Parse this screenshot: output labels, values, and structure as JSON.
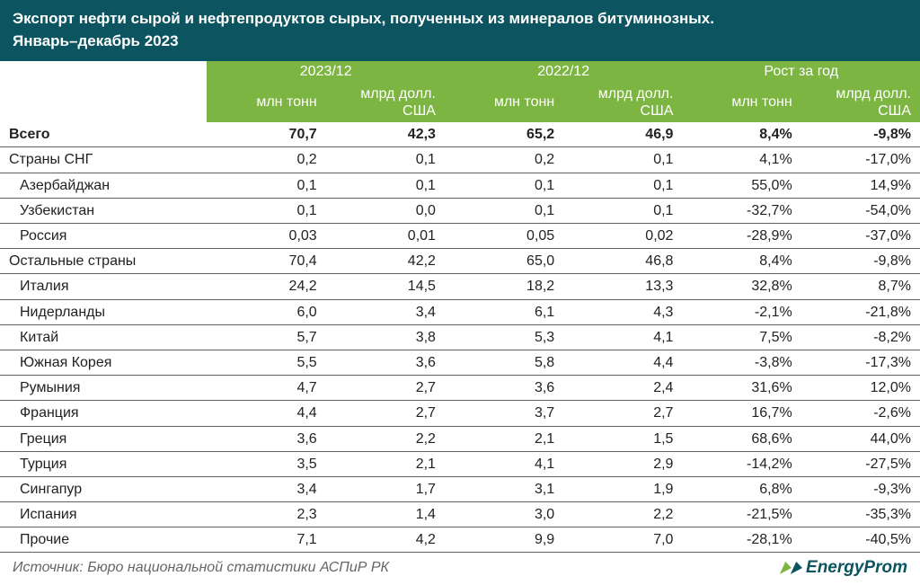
{
  "header": {
    "title_line1": "Экспорт нефти сырой и нефтепродуктов сырых, полученных из минералов битуминозных.",
    "title_line2": "Январь–декабрь 2023"
  },
  "columns": {
    "period1": "2023/12",
    "period2": "2022/12",
    "period3": "Рост за год",
    "unit1": "млн тонн",
    "unit2": "млрд долл. США"
  },
  "rows": [
    {
      "label": "Всего",
      "bold": true,
      "indent": 0,
      "v": [
        "70,7",
        "42,3",
        "65,2",
        "46,9",
        "8,4%",
        "-9,8%"
      ]
    },
    {
      "label": "Страны СНГ",
      "bold": false,
      "indent": 0,
      "v": [
        "0,2",
        "0,1",
        "0,2",
        "0,1",
        "4,1%",
        "-17,0%"
      ]
    },
    {
      "label": "Азербайджан",
      "bold": false,
      "indent": 1,
      "v": [
        "0,1",
        "0,1",
        "0,1",
        "0,1",
        "55,0%",
        "14,9%"
      ]
    },
    {
      "label": "Узбекистан",
      "bold": false,
      "indent": 1,
      "v": [
        "0,1",
        "0,0",
        "0,1",
        "0,1",
        "-32,7%",
        "-54,0%"
      ]
    },
    {
      "label": "Россия",
      "bold": false,
      "indent": 1,
      "v": [
        "0,03",
        "0,01",
        "0,05",
        "0,02",
        "-28,9%",
        "-37,0%"
      ]
    },
    {
      "label": "Остальные страны",
      "bold": false,
      "indent": 0,
      "v": [
        "70,4",
        "42,2",
        "65,0",
        "46,8",
        "8,4%",
        "-9,8%"
      ]
    },
    {
      "label": "Италия",
      "bold": false,
      "indent": 1,
      "v": [
        "24,2",
        "14,5",
        "18,2",
        "13,3",
        "32,8%",
        "8,7%"
      ]
    },
    {
      "label": "Нидерланды",
      "bold": false,
      "indent": 1,
      "v": [
        "6,0",
        "3,4",
        "6,1",
        "4,3",
        "-2,1%",
        "-21,8%"
      ]
    },
    {
      "label": "Китай",
      "bold": false,
      "indent": 1,
      "v": [
        "5,7",
        "3,8",
        "5,3",
        "4,1",
        "7,5%",
        "-8,2%"
      ]
    },
    {
      "label": "Южная Корея",
      "bold": false,
      "indent": 1,
      "v": [
        "5,5",
        "3,6",
        "5,8",
        "4,4",
        "-3,8%",
        "-17,3%"
      ]
    },
    {
      "label": "Румыния",
      "bold": false,
      "indent": 1,
      "v": [
        "4,7",
        "2,7",
        "3,6",
        "2,4",
        "31,6%",
        "12,0%"
      ]
    },
    {
      "label": "Франция",
      "bold": false,
      "indent": 1,
      "v": [
        "4,4",
        "2,7",
        "3,7",
        "2,7",
        "16,7%",
        "-2,6%"
      ]
    },
    {
      "label": "Греция",
      "bold": false,
      "indent": 1,
      "v": [
        "3,6",
        "2,2",
        "2,1",
        "1,5",
        "68,6%",
        "44,0%"
      ]
    },
    {
      "label": "Турция",
      "bold": false,
      "indent": 1,
      "v": [
        "3,5",
        "2,1",
        "4,1",
        "2,9",
        "-14,2%",
        "-27,5%"
      ]
    },
    {
      "label": "Сингапур",
      "bold": false,
      "indent": 1,
      "v": [
        "3,4",
        "1,7",
        "3,1",
        "1,9",
        "6,8%",
        "-9,3%"
      ]
    },
    {
      "label": "Испания",
      "bold": false,
      "indent": 1,
      "v": [
        "2,3",
        "1,4",
        "3,0",
        "2,2",
        "-21,5%",
        "-35,3%"
      ]
    },
    {
      "label": "Прочие",
      "bold": false,
      "indent": 1,
      "v": [
        "7,1",
        "4,2",
        "9,9",
        "7,0",
        "-28,1%",
        "-40,5%"
      ]
    }
  ],
  "source": "Источник: Бюро национальной статистики АСПиР РК",
  "logo": {
    "text": "EnergyProm"
  },
  "style": {
    "header_bg": "#0c5460",
    "header_fg": "#ffffff",
    "thead_bg": "#7db542",
    "thead_fg": "#ffffff",
    "row_border": "#606060",
    "text_color": "#222222",
    "source_color": "#666666",
    "logo_color": "#0c5460",
    "logo_arrow_green": "#7db542"
  }
}
